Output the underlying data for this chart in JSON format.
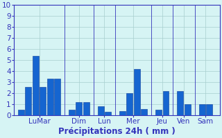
{
  "bars": [
    {
      "x": 1,
      "height": 0.5
    },
    {
      "x": 2,
      "height": 2.6
    },
    {
      "x": 3,
      "height": 5.4
    },
    {
      "x": 4,
      "height": 2.6
    },
    {
      "x": 5,
      "height": 3.3
    },
    {
      "x": 6,
      "height": 3.3
    },
    {
      "x": 8,
      "height": 0.5
    },
    {
      "x": 9,
      "height": 1.2
    },
    {
      "x": 10,
      "height": 1.2
    },
    {
      "x": 12,
      "height": 0.8
    },
    {
      "x": 13,
      "height": 0.3
    },
    {
      "x": 15,
      "height": 0.4
    },
    {
      "x": 16,
      "height": 2.0
    },
    {
      "x": 17,
      "height": 4.2
    },
    {
      "x": 18,
      "height": 0.6
    },
    {
      "x": 20,
      "height": 0.5
    },
    {
      "x": 21,
      "height": 2.2
    },
    {
      "x": 23,
      "height": 2.2
    },
    {
      "x": 24,
      "height": 1.0
    },
    {
      "x": 26,
      "height": 1.0
    },
    {
      "x": 27,
      "height": 1.0
    }
  ],
  "group_tick_positions": [
    3.5,
    9.0,
    12.5,
    16.5,
    20.5,
    23.5,
    26.5
  ],
  "tick_labels": [
    "LuMar",
    "Dim",
    "Lun",
    "Mer",
    "Jeu",
    "Ven",
    "Sam"
  ],
  "group_dividers": [
    7.0,
    11.0,
    14.0,
    19.0,
    22.0,
    25.0
  ],
  "xlabel": "Précipitations 24h ( mm )",
  "ylim": [
    0,
    10
  ],
  "yticks": [
    0,
    1,
    2,
    3,
    4,
    5,
    6,
    7,
    8,
    9,
    10
  ],
  "xlim": [
    0,
    28.5
  ],
  "bar_color": "#1565d0",
  "bar_edge_color": "#0a3a99",
  "background_color": "#d6f4f4",
  "grid_color": "#a8cece",
  "axis_color": "#3333bb",
  "text_color": "#3333bb",
  "xlabel_fontsize": 8.5,
  "ytick_fontsize": 7.5,
  "xtick_fontsize": 7.5
}
